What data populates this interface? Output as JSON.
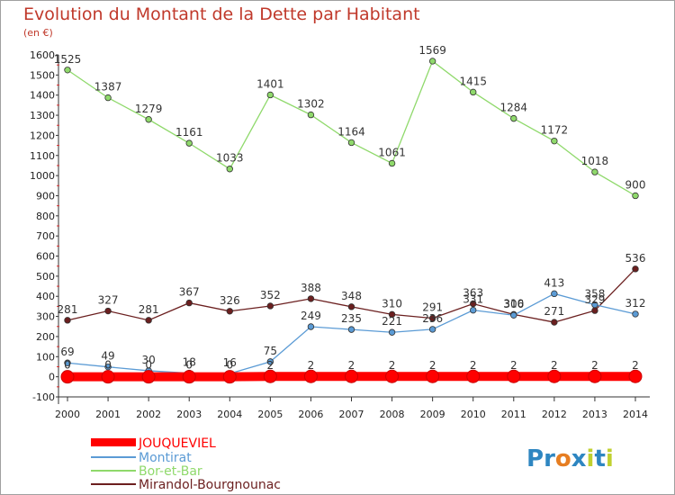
{
  "chart_data": {
    "type": "line",
    "title": "Evolution du Montant de la Dette par Habitant",
    "subtitle": "(en €)",
    "x": [
      "2000",
      "2001",
      "2002",
      "2003",
      "2004",
      "2005",
      "2006",
      "2007",
      "2008",
      "2009",
      "2010",
      "2011",
      "2012",
      "2013",
      "2014"
    ],
    "ylim": [
      -100,
      1600
    ],
    "yticks": [
      -100,
      0,
      100,
      200,
      300,
      400,
      500,
      600,
      700,
      800,
      900,
      1000,
      1100,
      1200,
      1300,
      1400,
      1500,
      1600
    ],
    "grid": false,
    "legend_position": "bottom-left",
    "series": [
      {
        "name": "JOUQUEVIEL",
        "color": "#ff0000",
        "emphasis": true,
        "values": [
          0,
          0,
          0,
          0,
          0,
          2,
          2,
          2,
          2,
          2,
          2,
          2,
          2,
          2,
          2
        ],
        "labels": [
          "",
          "",
          "",
          "",
          "",
          "2",
          "2",
          "2",
          "2",
          "2",
          "2",
          "2",
          "2",
          "2",
          "2"
        ]
      },
      {
        "name": "Montirat",
        "color": "#5b9bd5",
        "values": [
          69,
          49,
          30,
          18,
          16,
          75,
          249,
          235,
          221,
          236,
          331,
          306,
          413,
          358,
          312
        ],
        "labels": [
          "69",
          "49",
          "30",
          "18",
          "16",
          "75",
          "249",
          "235",
          "221",
          "236",
          "331",
          "306",
          "413",
          "358",
          "312"
        ]
      },
      {
        "name": "Bor-et-Bar",
        "color": "#8fd96b",
        "values": [
          1525,
          1387,
          1279,
          1161,
          1033,
          1401,
          1302,
          1164,
          1061,
          1569,
          1415,
          1284,
          1172,
          1018,
          900
        ],
        "labels": [
          "1525",
          "1387",
          "1279",
          "1161",
          "1033",
          "1401",
          "1302",
          "1164",
          "1061",
          "1569",
          "1415",
          "1284",
          "1172",
          "1018",
          "900"
        ]
      },
      {
        "name": "Mirandol-Bourgnounac",
        "color": "#6b1f1f",
        "values": [
          281,
          327,
          281,
          367,
          326,
          352,
          388,
          348,
          310,
          291,
          363,
          310,
          271,
          329,
          536
        ],
        "labels": [
          "281",
          "327",
          "281",
          "367",
          "326",
          "352",
          "388",
          "348",
          "310",
          "291",
          "363",
          "310",
          "271",
          "329",
          "536"
        ]
      }
    ],
    "extra_labels": [
      {
        "x": "2000",
        "value": 0,
        "text": "0"
      },
      {
        "x": "2001",
        "value": 0,
        "text": "0"
      },
      {
        "x": "2002",
        "value": 0,
        "text": "0"
      },
      {
        "x": "2003",
        "value": 0,
        "text": "0"
      },
      {
        "x": "2004",
        "value": 0,
        "text": "0"
      }
    ]
  },
  "brand": {
    "text": "Proxiti",
    "letters": [
      {
        "ch": "P",
        "color": "#2e86c1"
      },
      {
        "ch": "r",
        "color": "#2e86c1"
      },
      {
        "ch": "o",
        "color": "#e67e22"
      },
      {
        "ch": "x",
        "color": "#2e86c1"
      },
      {
        "ch": "i",
        "color": "#c0d030"
      },
      {
        "ch": "t",
        "color": "#2e86c1"
      },
      {
        "ch": "i",
        "color": "#c0d030"
      }
    ]
  }
}
